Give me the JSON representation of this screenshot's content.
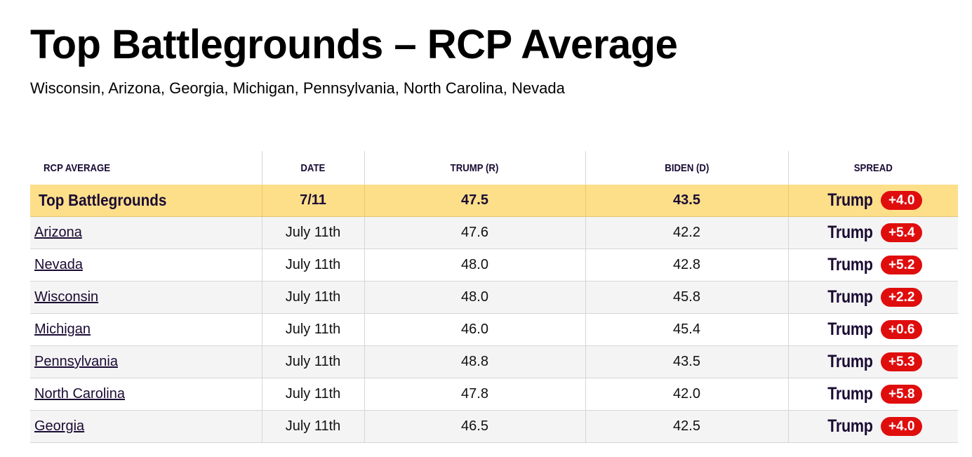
{
  "page": {
    "title": "Top Battlegrounds – RCP Average",
    "subtitle": "Wisconsin, Arizona, Georgia, Michigan, Pennsylvania, North Carolina, Nevada"
  },
  "table": {
    "headers": {
      "name": "RCP AVERAGE",
      "date": "DATE",
      "trump": "TRUMP (R)",
      "biden": "BIDEN (D)",
      "spread": "SPREAD"
    },
    "summary": {
      "name": "Top Battlegrounds",
      "date": "7/11",
      "trump": "47.5",
      "biden": "43.5",
      "spread_leader": "Trump",
      "spread_value": "+4.0"
    },
    "rows": [
      {
        "name": "Arizona",
        "date": "July 11th",
        "trump": "47.6",
        "biden": "42.2",
        "spread_leader": "Trump",
        "spread_value": "+5.4"
      },
      {
        "name": "Nevada",
        "date": "July 11th",
        "trump": "48.0",
        "biden": "42.8",
        "spread_leader": "Trump",
        "spread_value": "+5.2"
      },
      {
        "name": "Wisconsin",
        "date": "July 11th",
        "trump": "48.0",
        "biden": "45.8",
        "spread_leader": "Trump",
        "spread_value": "+2.2"
      },
      {
        "name": "Michigan",
        "date": "July 11th",
        "trump": "46.0",
        "biden": "45.4",
        "spread_leader": "Trump",
        "spread_value": "+0.6"
      },
      {
        "name": "Pennsylvania",
        "date": "July 11th",
        "trump": "48.8",
        "biden": "43.5",
        "spread_leader": "Trump",
        "spread_value": "+5.3"
      },
      {
        "name": "North Carolina",
        "date": "July 11th",
        "trump": "47.8",
        "biden": "42.0",
        "spread_leader": "Trump",
        "spread_value": "+5.8"
      },
      {
        "name": "Georgia",
        "date": "July 11th",
        "trump": "46.5",
        "biden": "42.5",
        "spread_leader": "Trump",
        "spread_value": "+4.0"
      }
    ]
  },
  "colors": {
    "summary_background": "#fddf8a",
    "republican_badge": "#e00d0d",
    "header_text": "#1a0b33",
    "alt_row": "#f4f4f4"
  }
}
